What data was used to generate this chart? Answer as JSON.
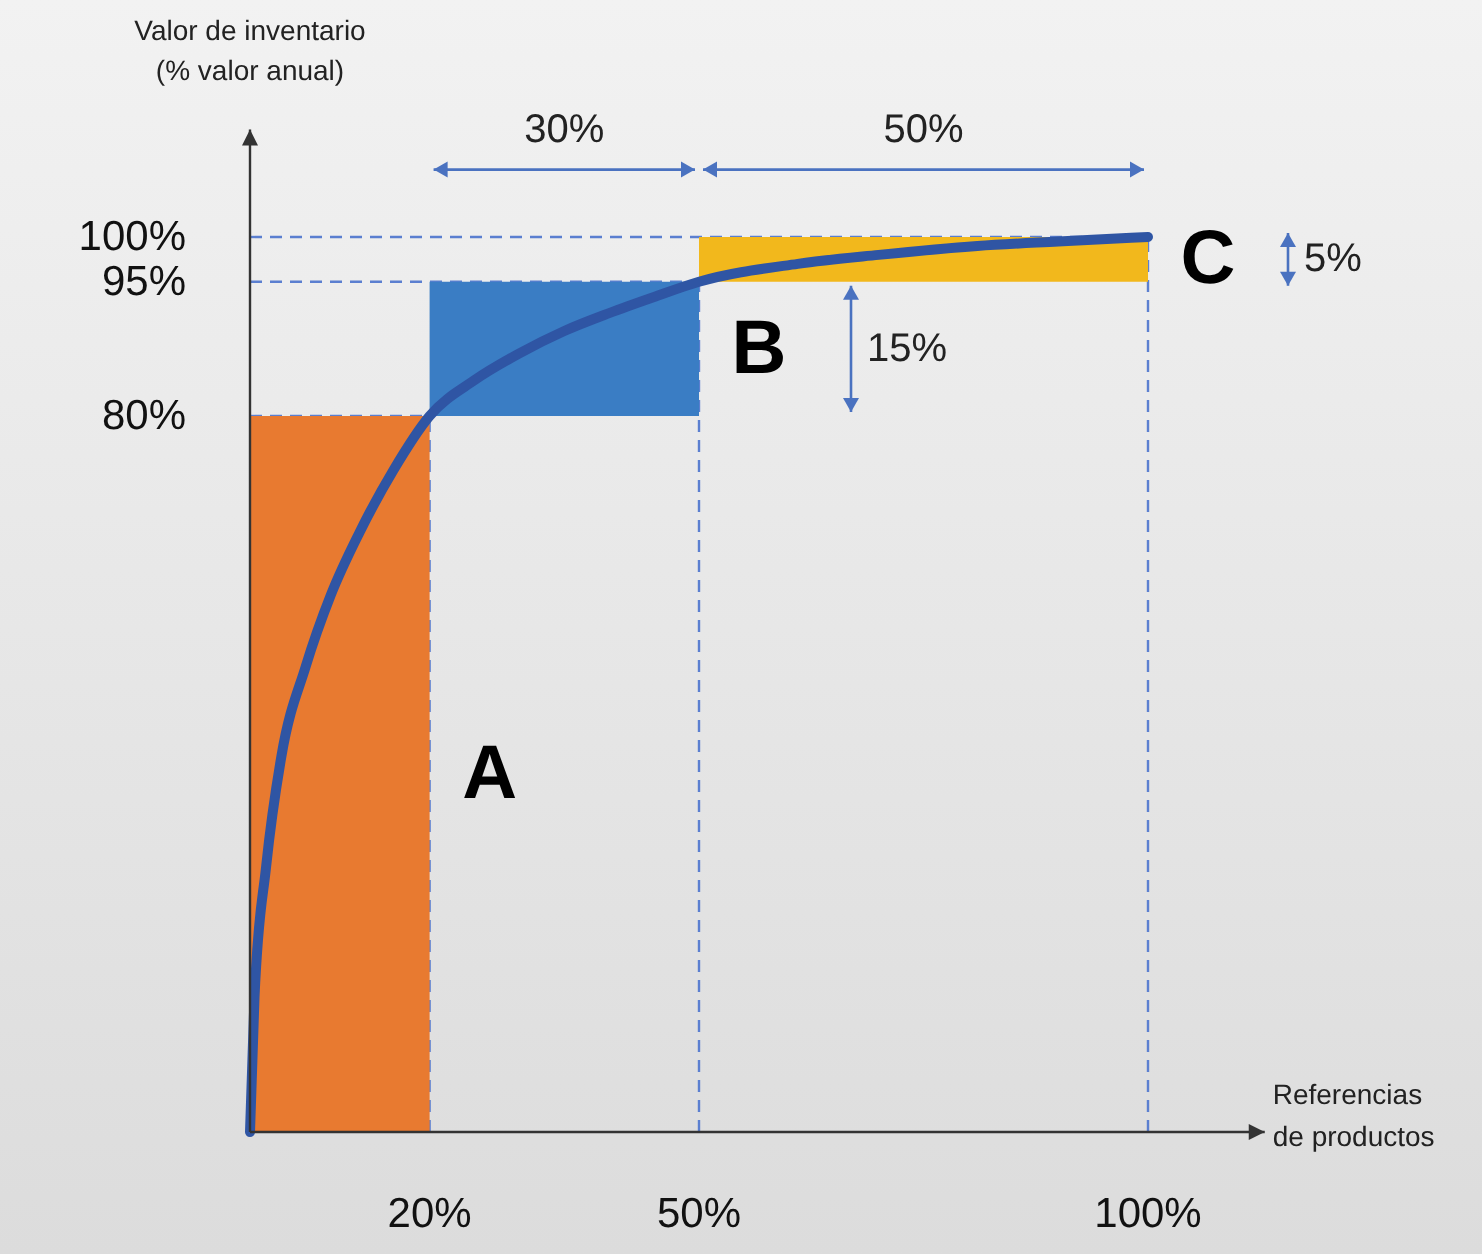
{
  "chart_data": {
    "type": "bar",
    "xlabel": "Referencias\nde productos",
    "ylabel": "Valor de inventario\n(% valor anual)",
    "xlim": [
      0,
      113
    ],
    "ylim": [
      0,
      112
    ],
    "xticks": [
      {
        "value": 20,
        "label": "20%"
      },
      {
        "value": 50,
        "label": "50%"
      },
      {
        "value": 100,
        "label": "100%"
      }
    ],
    "yticks": [
      {
        "value": 80,
        "label": "80%"
      },
      {
        "value": 95,
        "label": "95%"
      },
      {
        "value": 100,
        "label": "100%"
      }
    ],
    "series": [
      {
        "x": [
          10,
          35,
          75
        ],
        "values": [
          80,
          15,
          5
        ],
        "base": [
          0,
          80,
          95
        ],
        "colors": [
          "#e87a30",
          "#3a7dc4",
          "#f2b81c"
        ]
      },
      {
        "type": "line",
        "color": "#2f55a4",
        "x": [
          0,
          0.5,
          1.8,
          3.5,
          6.2,
          9,
          12.2,
          16,
          20,
          25,
          30,
          35,
          40,
          45,
          50,
          61,
          70,
          81,
          90,
          100
        ],
        "values": [
          0,
          15,
          29.7,
          42,
          52,
          60,
          67,
          74,
          80,
          84,
          87,
          89.5,
          91.5,
          93.3,
          95,
          97,
          98,
          99,
          99.5,
          100
        ]
      }
    ],
    "ref_lines": [
      {
        "axis": "y",
        "value": 80,
        "color": "#5b7fd0",
        "line_style": "dashed"
      },
      {
        "axis": "y",
        "value": 95,
        "color": "#5b7fd0",
        "line_style": "dashed"
      },
      {
        "axis": "y",
        "value": 100,
        "color": "#5b7fd0",
        "line_style": "dashed"
      },
      {
        "axis": "x",
        "value": 20,
        "color": "#5b7fd0",
        "line_style": "dashed"
      },
      {
        "axis": "x",
        "value": 50,
        "color": "#5b7fd0",
        "line_style": "dashed"
      },
      {
        "axis": "x",
        "value": 100,
        "color": "#5b7fd0",
        "line_style": "dashed"
      }
    ],
    "annotations": [
      "A",
      "B",
      "C",
      "30%",
      "50%",
      "15%",
      "5%"
    ],
    "grid": false
  }
}
